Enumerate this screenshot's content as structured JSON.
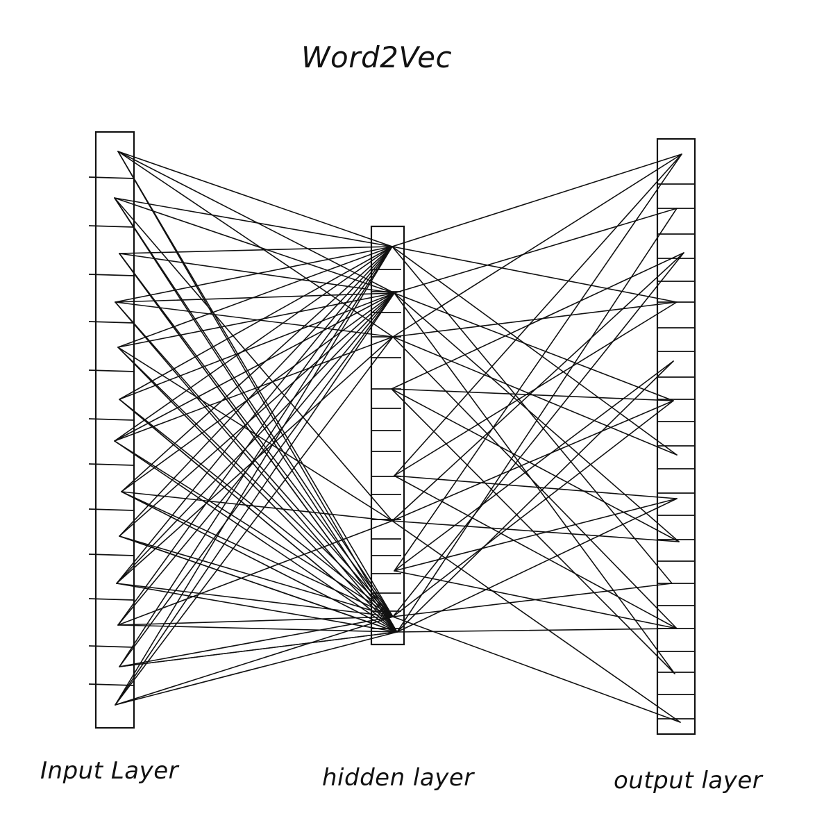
{
  "title": "Word2Vec",
  "layers": {
    "input": "Input Layer",
    "hidden": "hidden layer",
    "output": "output layer"
  },
  "colors": {
    "stroke": "#111111",
    "background": "#ffffff"
  }
}
